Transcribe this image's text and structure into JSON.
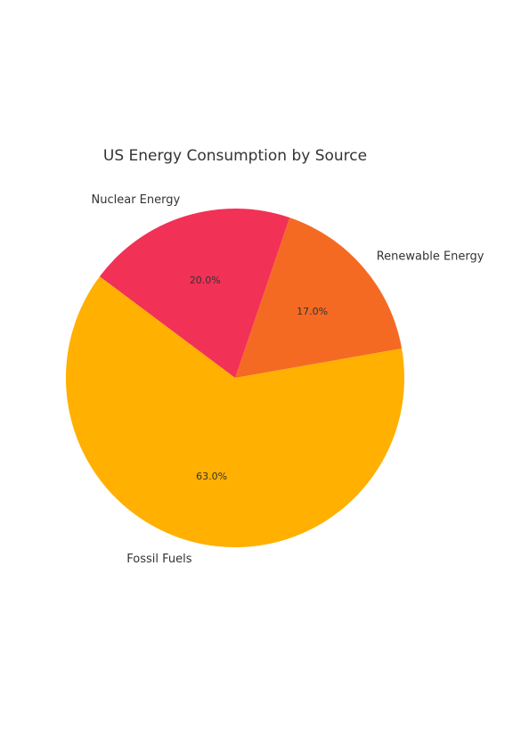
{
  "chart_data": {
    "type": "pie",
    "title": "US Energy Consumption by Source",
    "slices": [
      {
        "label": "Renewable Energy",
        "value": 17.0,
        "pct_label": "17.0%",
        "color": "#f56a23"
      },
      {
        "label": "Nuclear Energy",
        "value": 20.0,
        "pct_label": "20.0%",
        "color": "#f23157"
      },
      {
        "label": "Fossil Fuels",
        "value": 63.0,
        "pct_label": "63.0%",
        "color": "#ffb000"
      }
    ],
    "start_angle_deg": 10,
    "direction": "counterclockwise",
    "legend": "none"
  }
}
